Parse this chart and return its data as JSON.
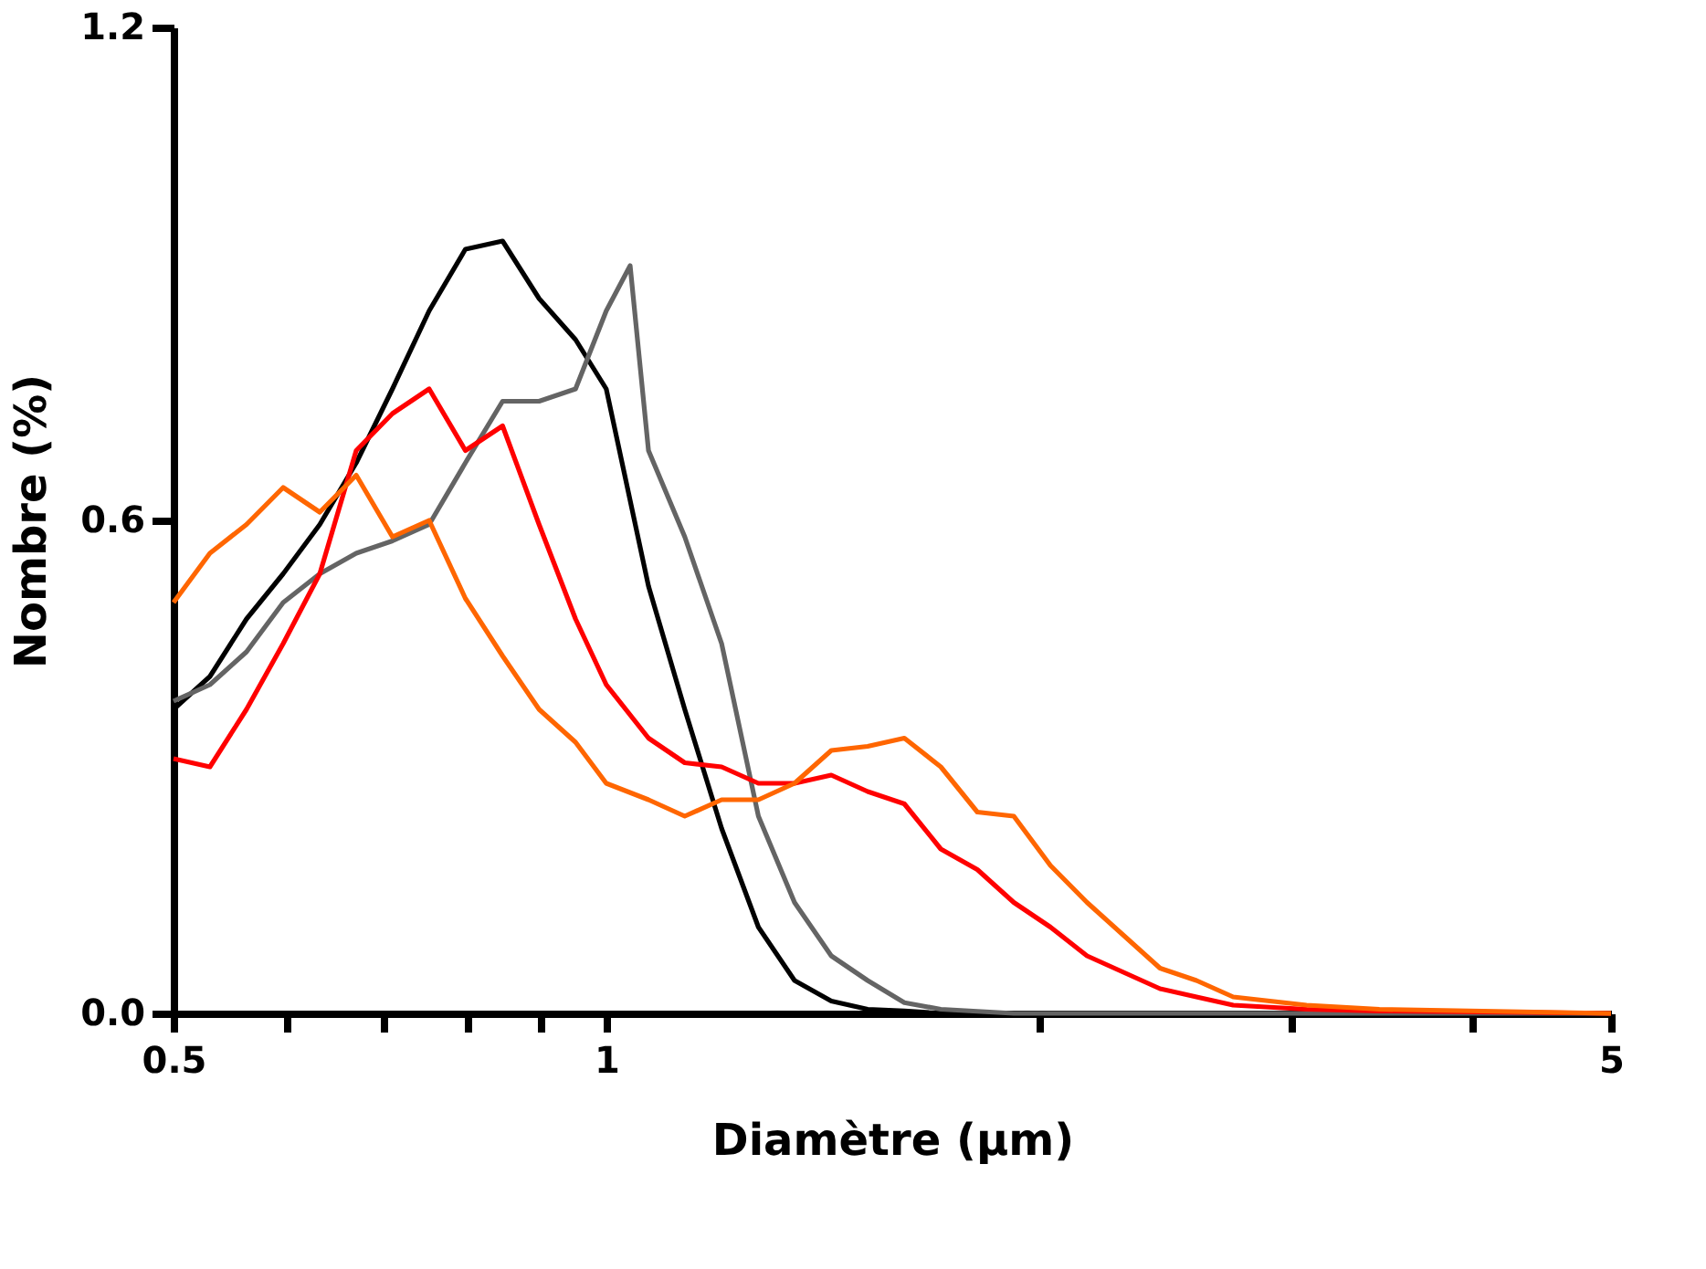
{
  "chart_data": {
    "type": "line",
    "xlabel": "Diamètre (µm)",
    "ylabel": "Nombre (%)",
    "log": "x",
    "xlim": [
      0.5,
      5
    ],
    "xticks": [
      0.5,
      {
        "value": 0.6,
        "label": null
      },
      {
        "value": 0.7,
        "label": null
      },
      {
        "value": 0.8,
        "label": null
      },
      {
        "value": 0.9,
        "label": null
      },
      1,
      {
        "value": 2,
        "label": null
      },
      {
        "value": 3,
        "label": null
      },
      {
        "value": 4,
        "label": null
      },
      5
    ],
    "ylim": [
      0,
      1.2
    ],
    "yticks": [
      {
        "value": 0,
        "label": "0.0"
      },
      0.6,
      1.2
    ],
    "grid": false,
    "legend": false,
    "marker": "none",
    "line_style": "solid",
    "series": [
      {
        "color": "#000000",
        "x": [
          0.5,
          0.53,
          0.562,
          0.596,
          0.632,
          0.67,
          0.71,
          0.753,
          0.798,
          0.847,
          0.898,
          0.952,
          1.0,
          1.07,
          1.134,
          1.203,
          1.276,
          1.352,
          1.434,
          1.52,
          1.612,
          1.709,
          1.921,
          2.16,
          2.574,
          3.07,
          5
        ],
        "values": [
          0.37,
          0.41,
          0.48,
          0.535,
          0.595,
          0.67,
          0.76,
          0.855,
          0.93,
          0.94,
          0.87,
          0.82,
          0.76,
          0.52,
          0.37,
          0.225,
          0.105,
          0.04,
          0.015,
          0.005,
          0.003,
          0,
          0,
          0,
          0,
          0,
          0
        ]
      },
      {
        "color": "#646464",
        "x": [
          0.5,
          0.53,
          0.562,
          0.596,
          0.632,
          0.67,
          0.71,
          0.753,
          0.798,
          0.847,
          0.898,
          0.952,
          1.0,
          1.039,
          1.07,
          1.134,
          1.203,
          1.276,
          1.352,
          1.434,
          1.52,
          1.612,
          1.709,
          1.921,
          2.16,
          2.574,
          3.07,
          5
        ],
        "values": [
          0.38,
          0.4,
          0.44,
          0.5,
          0.535,
          0.56,
          0.575,
          0.595,
          0.67,
          0.745,
          0.745,
          0.76,
          0.855,
          0.91,
          0.685,
          0.58,
          0.45,
          0.24,
          0.135,
          0.07,
          0.04,
          0.013,
          0.005,
          0,
          0,
          0,
          0,
          0
        ]
      },
      {
        "color": "#ff0000",
        "x": [
          0.5,
          0.53,
          0.562,
          0.596,
          0.632,
          0.67,
          0.71,
          0.753,
          0.798,
          0.847,
          0.898,
          0.952,
          1.0,
          1.07,
          1.134,
          1.203,
          1.276,
          1.352,
          1.434,
          1.52,
          1.612,
          1.709,
          1.812,
          1.921,
          2.037,
          2.16,
          2.29,
          2.428,
          2.574,
          2.73,
          3.07,
          3.45,
          5
        ],
        "values": [
          0.31,
          0.3,
          0.37,
          0.45,
          0.535,
          0.685,
          0.73,
          0.76,
          0.685,
          0.715,
          0.595,
          0.48,
          0.4,
          0.335,
          0.305,
          0.3,
          0.28,
          0.28,
          0.29,
          0.27,
          0.255,
          0.2,
          0.175,
          0.135,
          0.105,
          0.07,
          0.05,
          0.03,
          0.02,
          0.01,
          0.005,
          0.003,
          0
        ]
      },
      {
        "color": "#ff6600",
        "x": [
          0.5,
          0.53,
          0.562,
          0.596,
          0.632,
          0.67,
          0.71,
          0.753,
          0.798,
          0.847,
          0.898,
          0.952,
          1.0,
          1.07,
          1.134,
          1.203,
          1.276,
          1.352,
          1.434,
          1.52,
          1.612,
          1.709,
          1.812,
          1.921,
          2.037,
          2.16,
          2.29,
          2.428,
          2.574,
          2.73,
          3.07,
          3.45,
          5
        ],
        "values": [
          0.5,
          0.56,
          0.595,
          0.64,
          0.61,
          0.655,
          0.58,
          0.6,
          0.505,
          0.435,
          0.37,
          0.33,
          0.28,
          0.26,
          0.24,
          0.26,
          0.26,
          0.28,
          0.32,
          0.325,
          0.335,
          0.3,
          0.245,
          0.24,
          0.18,
          0.135,
          0.095,
          0.055,
          0.04,
          0.02,
          0.01,
          0.005,
          0
        ]
      }
    ]
  }
}
